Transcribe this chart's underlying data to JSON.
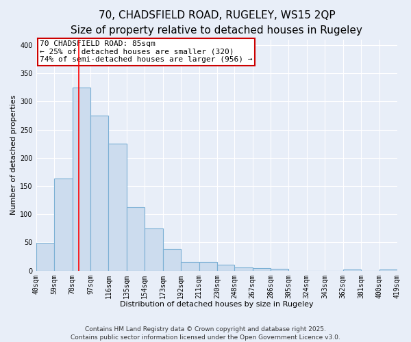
{
  "title": "70, CHADSFIELD ROAD, RUGELEY, WS15 2QP",
  "subtitle": "Size of property relative to detached houses in Rugeley",
  "xlabel": "Distribution of detached houses by size in Rugeley",
  "ylabel": "Number of detached properties",
  "bin_edges": [
    40,
    59,
    78,
    97,
    116,
    135,
    154,
    173,
    192,
    211,
    230,
    248,
    267,
    286,
    305,
    324,
    343,
    362,
    381,
    400,
    419
  ],
  "bar_heights": [
    49,
    163,
    325,
    275,
    225,
    112,
    75,
    38,
    16,
    16,
    10,
    6,
    5,
    3,
    0,
    0,
    0,
    2,
    0,
    2
  ],
  "bar_color": "#ccdcee",
  "bar_edge_color": "#7aafd4",
  "red_line_x": 85,
  "ylim": [
    0,
    410
  ],
  "yticks": [
    0,
    50,
    100,
    150,
    200,
    250,
    300,
    350,
    400
  ],
  "annotation_title": "70 CHADSFIELD ROAD: 85sqm",
  "annotation_line1": "← 25% of detached houses are smaller (320)",
  "annotation_line2": "74% of semi-detached houses are larger (956) →",
  "annotation_box_color": "#ffffff",
  "annotation_border_color": "#cc0000",
  "footer_line1": "Contains HM Land Registry data © Crown copyright and database right 2025.",
  "footer_line2": "Contains public sector information licensed under the Open Government Licence v3.0.",
  "background_color": "#e8eef8",
  "grid_color": "#ffffff",
  "title_fontsize": 11,
  "subtitle_fontsize": 9,
  "axis_label_fontsize": 8,
  "tick_fontsize": 7,
  "annotation_fontsize": 8,
  "footer_fontsize": 6.5
}
